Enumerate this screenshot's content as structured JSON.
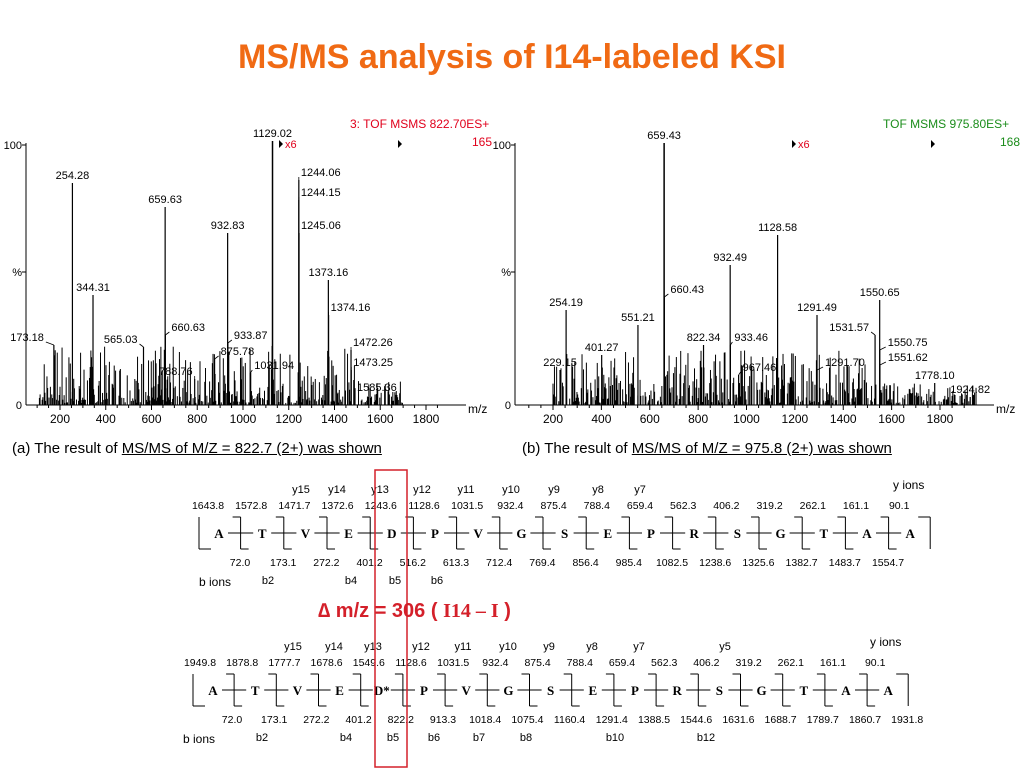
{
  "title": "MS/MS analysis of I14-labeled KSI",
  "colors": {
    "title": "#f06a14",
    "header_a": "#e0001b",
    "header_b": "#1a8c1a",
    "highlight_box": "#d4202a",
    "delta": "#d4202a"
  },
  "spectrum_a": {
    "header": "3: TOF MSMS 822.70ES+",
    "header_value": "165",
    "scale_note": "x6",
    "y_labels": {
      "top": "100",
      "mid": "%",
      "bottom": "0"
    },
    "x_unit": "m/z",
    "x_ticks": [
      "200",
      "400",
      "600",
      "800",
      "1000",
      "1200",
      "1400",
      "1600",
      "1800"
    ],
    "peak_labels": [
      "254.28",
      "344.31",
      "173.18",
      "659.63",
      "565.03",
      "660.63",
      "875.78",
      "788.76",
      "932.83",
      "933.87",
      "1031.94",
      "1129.02",
      "1244.06",
      "1244.15",
      "1245.06",
      "1373.16",
      "1374.16",
      "1472.26",
      "1473.25",
      "1585.36"
    ],
    "caption_prefix": "(a) The result of ",
    "caption_underlined": "MS/MS of M/Z = 822.7 (2+) was shown"
  },
  "spectrum_b": {
    "header": "TOF MSMS 975.80ES+",
    "header_value": "168",
    "scale_note": "x6",
    "y_labels": {
      "top": "100",
      "mid": "%",
      "bottom": "0"
    },
    "x_unit": "m/z",
    "x_ticks": [
      "200",
      "400",
      "600",
      "800",
      "1000",
      "1200",
      "1400",
      "1600",
      "1800"
    ],
    "peak_labels": [
      "659.43",
      "254.19",
      "229.15",
      "401.27",
      "551.21",
      "660.43",
      "822.34",
      "932.49",
      "933.46",
      "967.46",
      "1128.58",
      "1291.49",
      "1291.70",
      "1550.65",
      "1531.57",
      "1550.75",
      "1551.62",
      "1778.10",
      "1924.82"
    ],
    "caption_prefix": "(b) The result of ",
    "caption_underlined": "MS/MS of M/Z = 975.8 (2+) was shown"
  },
  "ladder_top": {
    "y_labels": [
      "y15",
      "y14",
      "y13",
      "y12",
      "y11",
      "y10",
      "y9",
      "y8",
      "y7"
    ],
    "y_ions_label": "y ions",
    "y_values": [
      "1643.8",
      "1572.8",
      "1471.7",
      "1372.6",
      "1243.6",
      "1128.6",
      "1031.5",
      "932.4",
      "875.4",
      "788.4",
      "659.4",
      "562.3",
      "406.2",
      "319.2",
      "262.1",
      "161.1",
      "90.1"
    ],
    "residues": [
      "A",
      "T",
      "V",
      "E",
      "D",
      "P",
      "V",
      "G",
      "S",
      "E",
      "P",
      "R",
      "S",
      "G",
      "T",
      "A",
      "A"
    ],
    "b_values": [
      "72.0",
      "173.1",
      "272.2",
      "401.2",
      "516.2",
      "613.3",
      "712.4",
      "769.4",
      "856.4",
      "985.4",
      "1082.5",
      "1238.6",
      "1325.6",
      "1382.7",
      "1483.7",
      "1554.7"
    ],
    "b_ions_label": "b ions",
    "b_labels": [
      "b2",
      "b4",
      "b5",
      "b6"
    ]
  },
  "delta": {
    "prefix": "∆ m/z = 306 ( ",
    "label": "I14 – I",
    "suffix": " )"
  },
  "ladder_bottom": {
    "y_labels": [
      "y15",
      "y14",
      "y13",
      "y12",
      "y11",
      "y10",
      "y9",
      "y8",
      "y7",
      "y5"
    ],
    "y_ions_label": "y ions",
    "y_values": [
      "1949.8",
      "1878.8",
      "1777.7",
      "1678.6",
      "1549.6",
      "1128.6",
      "1031.5",
      "932.4",
      "875.4",
      "788.4",
      "659.4",
      "562.3",
      "406.2",
      "319.2",
      "262.1",
      "161.1",
      "90.1"
    ],
    "residues": [
      "A",
      "T",
      "V",
      "E",
      "D*",
      "P",
      "V",
      "G",
      "S",
      "E",
      "P",
      "R",
      "S",
      "G",
      "T",
      "A",
      "A"
    ],
    "b_values": [
      "72.0",
      "173.1",
      "272.2",
      "401.2",
      "822.2",
      "913.3",
      "1018.4",
      "1075.4",
      "1160.4",
      "1291.4",
      "1388.5",
      "1544.6",
      "1631.6",
      "1688.7",
      "1789.7",
      "1860.7",
      "1931.8"
    ],
    "b_ions_label": "b ions",
    "b_labels": [
      "b2",
      "b4",
      "b5",
      "b6",
      "b7",
      "b8",
      "b10",
      "b12"
    ]
  }
}
